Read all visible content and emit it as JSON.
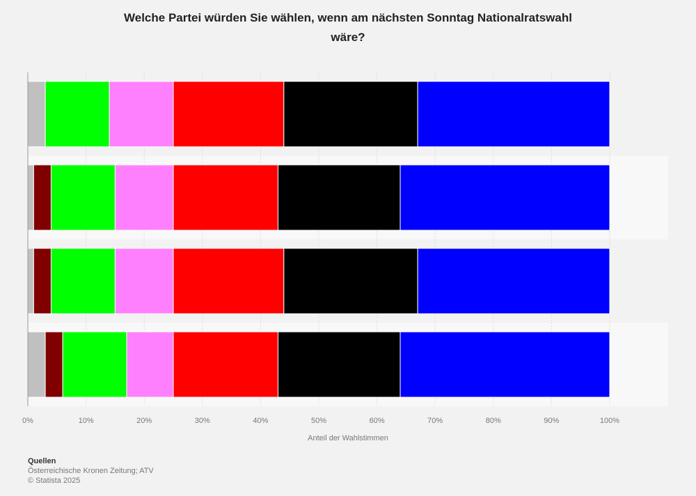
{
  "title_lines": [
    "Welche Partei würden Sie wählen, wenn am nächsten Sonntag Nationalratswahl",
    "wäre?"
  ],
  "source": {
    "heading": "Quellen",
    "line1": "Österreichische Kronen Zeitung; ATV",
    "line2": "© Statista 2025"
  },
  "chart_data": {
    "type": "bar",
    "orientation": "horizontal",
    "stacked": true,
    "title": "Welche Partei würden Sie wählen, wenn am nächsten Sonntag Nationalratswahl wäre?",
    "xlabel": "Anteil der Wahlstimmen",
    "ylabel": "",
    "xlim": [
      0,
      100
    ],
    "xticks": [
      "0%",
      "10%",
      "20%",
      "30%",
      "40%",
      "50%",
      "60%",
      "70%",
      "80%",
      "90%",
      "100%"
    ],
    "categories": [
      "",
      "",
      "",
      ""
    ],
    "series": [
      {
        "color": "#c0c0c0",
        "values": [
          3,
          1,
          1,
          3
        ]
      },
      {
        "color": "#800000",
        "values": [
          0,
          3,
          3,
          3
        ]
      },
      {
        "color": "#00ff00",
        "values": [
          11,
          11,
          11,
          11
        ]
      },
      {
        "color": "#ff80ff",
        "values": [
          11,
          10,
          10,
          8
        ]
      },
      {
        "color": "#ff0000",
        "values": [
          19,
          18,
          19,
          18
        ]
      },
      {
        "color": "#000000",
        "values": [
          23,
          21,
          23,
          21
        ]
      },
      {
        "color": "#0000ff",
        "values": [
          33,
          36,
          33,
          36
        ]
      }
    ]
  }
}
